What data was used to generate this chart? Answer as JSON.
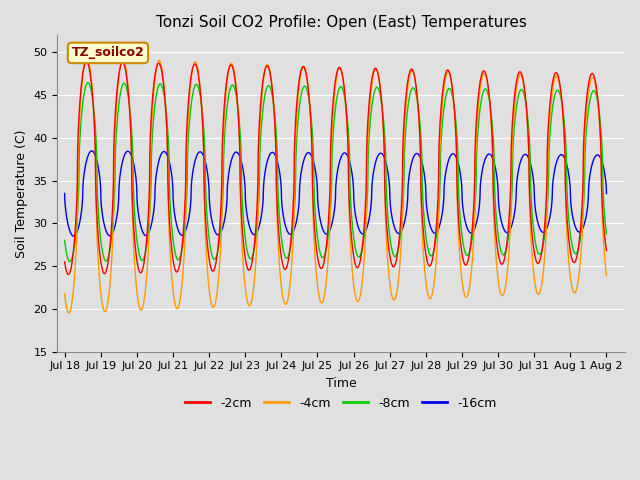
{
  "title": "Tonzi Soil CO2 Profile: Open (East) Temperatures",
  "xlabel": "Time",
  "ylabel": "Soil Temperature (C)",
  "ylim": [
    15,
    52
  ],
  "yticks": [
    15,
    20,
    25,
    30,
    35,
    40,
    45,
    50
  ],
  "legend_label": "TZ_soilco2",
  "series": [
    {
      "label": "-2cm",
      "color": "#ff0000"
    },
    {
      "label": "-4cm",
      "color": "#ff9900"
    },
    {
      "label": "-8cm",
      "color": "#00cc00"
    },
    {
      "label": "-16cm",
      "color": "#0000ee"
    }
  ],
  "background_color": "#e0e0e0",
  "grid_color": "#ffffff",
  "xtick_labels": [
    "Jul 18",
    "Jul 19",
    "Jul 20",
    "Jul 21",
    "Jul 22",
    "Jul 23",
    "Jul 24",
    "Jul 25",
    "Jul 26",
    "Jul 27",
    "Jul 28",
    "Jul 29",
    "Jul 30",
    "Jul 31",
    "Aug 1",
    "Aug 2"
  ],
  "depth_params": {
    "-2cm": {
      "mean": 36.5,
      "amp": 12.5,
      "phase_hr": 14.5,
      "lower_flat": true,
      "amp_decay": 1.5
    },
    "-4cm": {
      "mean": 34.5,
      "amp": 15.0,
      "phase_hr": 14.8,
      "lower_flat": true,
      "amp_decay": 2.5
    },
    "-8cm": {
      "mean": 36.0,
      "amp": 10.5,
      "phase_hr": 15.5,
      "lower_flat": false,
      "amp_decay": 1.0
    },
    "-16cm": {
      "mean": 33.5,
      "amp": 5.0,
      "phase_hr": 18.0,
      "lower_flat": false,
      "amp_decay": 0.5
    }
  },
  "title_fontsize": 11,
  "axis_label_fontsize": 9,
  "tick_fontsize": 8,
  "legend_fontsize": 9
}
